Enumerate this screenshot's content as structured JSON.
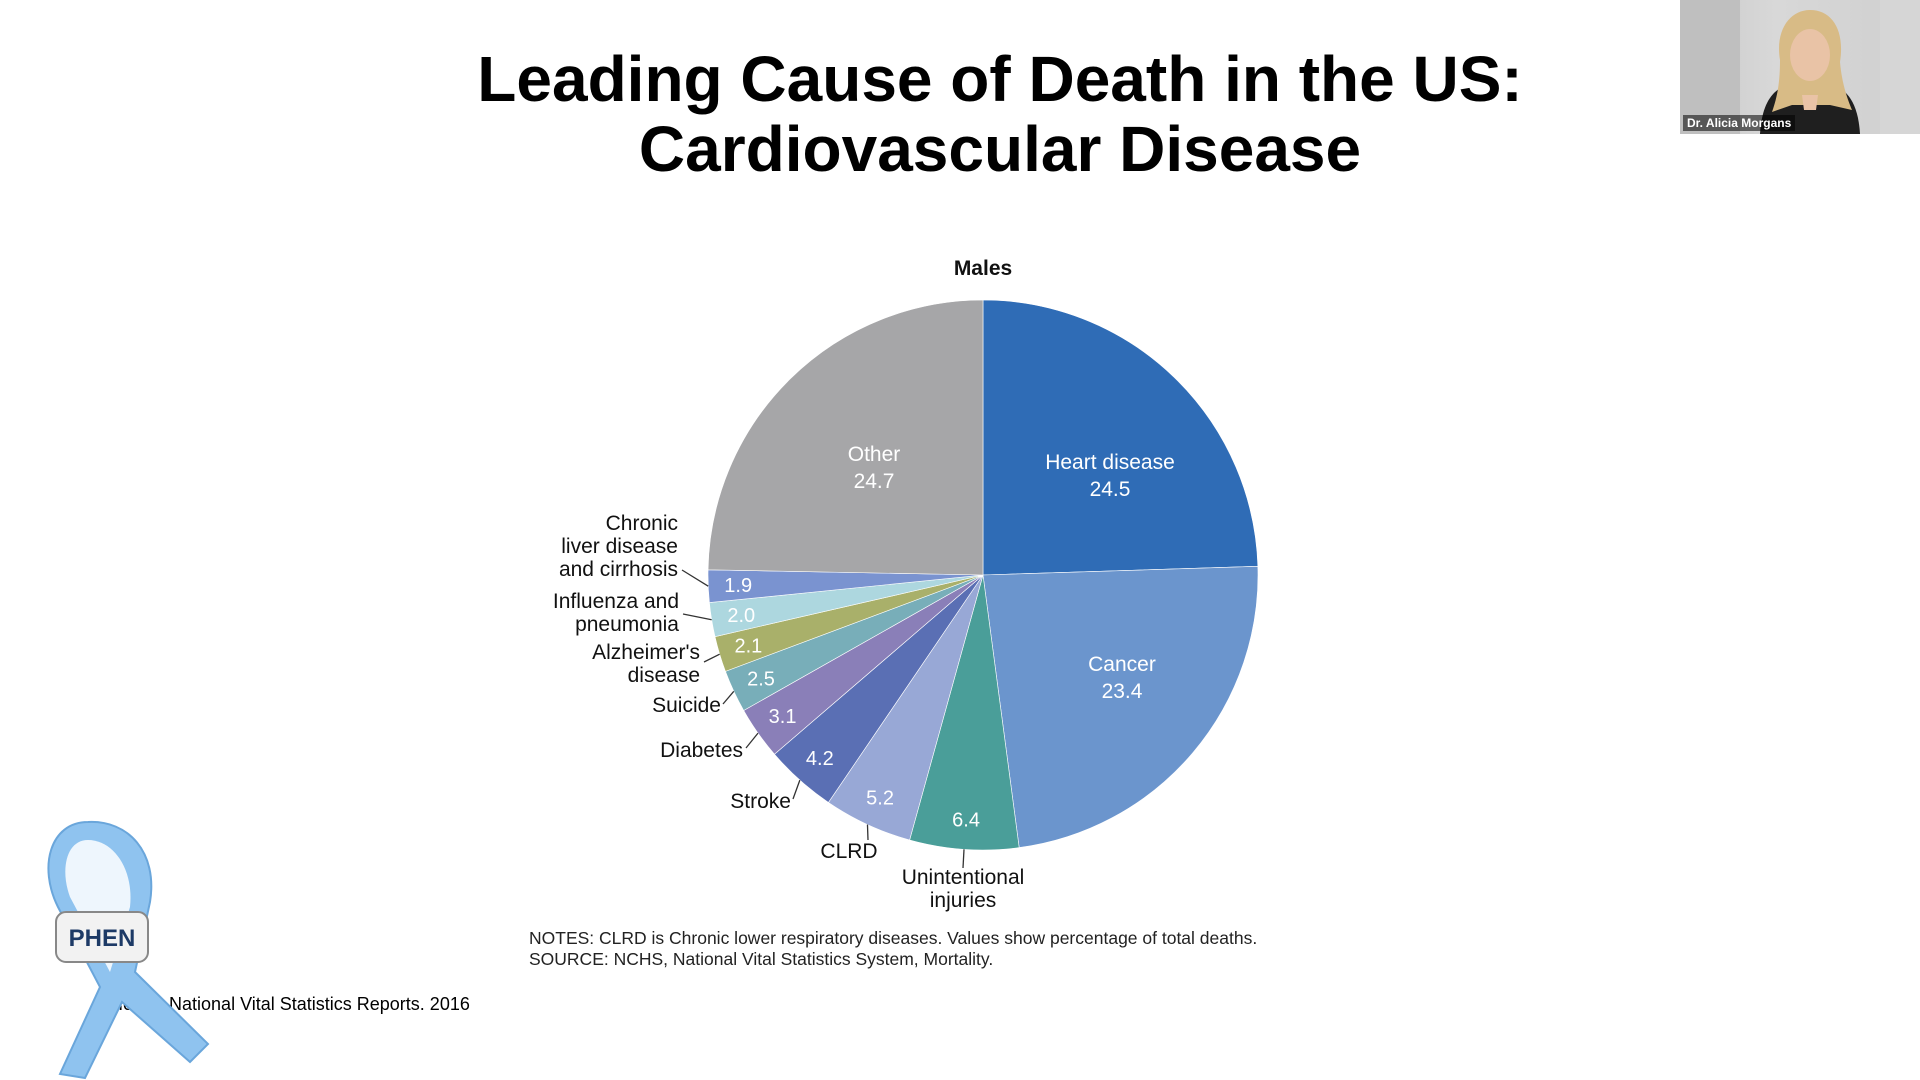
{
  "slide": {
    "title_line1": "Leading Cause of Death in the US:",
    "title_line2": "Cardiovascular Disease",
    "notes_line1": "NOTES: CLRD is Chronic lower respiratory diseases. Values show percentage of total deaths.",
    "notes_line2": "SOURCE: NCHS, National Vital Statistics System, Mortality.",
    "citation": "Heron, National Vital Statistics Reports. 2016",
    "logo_text": "PHEN"
  },
  "webcam": {
    "participant_name": "Dr. Alicia Morgans"
  },
  "chart_data": {
    "type": "pie",
    "title": "Males",
    "unit": "percent of total deaths",
    "slices": [
      {
        "label": "Heart disease",
        "value": 24.5,
        "value_label": "24.5",
        "color": "#2f6cb6",
        "label_inside": true
      },
      {
        "label": "Cancer",
        "value": 23.4,
        "value_label": "23.4",
        "color": "#6b95cd",
        "label_inside": true
      },
      {
        "label": "Unintentional injuries",
        "value": 6.4,
        "value_label": "6.4",
        "color": "#4a9e99",
        "label_inside": false
      },
      {
        "label": "CLRD",
        "value": 5.2,
        "value_label": "5.2",
        "color": "#98a8d6",
        "label_inside": false
      },
      {
        "label": "Stroke",
        "value": 4.2,
        "value_label": "4.2",
        "color": "#5a6fb4",
        "label_inside": false
      },
      {
        "label": "Diabetes",
        "value": 3.1,
        "value_label": "3.1",
        "color": "#8a7fb8",
        "label_inside": false
      },
      {
        "label": "Suicide",
        "value": 2.5,
        "value_label": "2.5",
        "color": "#78aeb9",
        "label_inside": false
      },
      {
        "label": "Alzheimer's disease",
        "value": 2.1,
        "value_label": "2.1",
        "color": "#a9b06a",
        "label_inside": false
      },
      {
        "label": "Influenza and pneumonia",
        "value": 2.0,
        "value_label": "2.0",
        "color": "#add7df",
        "label_inside": false
      },
      {
        "label": "Chronic liver disease and cirrhosis",
        "value": 1.9,
        "value_label": "1.9",
        "color": "#7a93d0",
        "label_inside": false
      },
      {
        "label": "Other",
        "value": 24.7,
        "value_label": "24.7",
        "color": "#a6a6a8",
        "label_inside": true
      }
    ]
  }
}
